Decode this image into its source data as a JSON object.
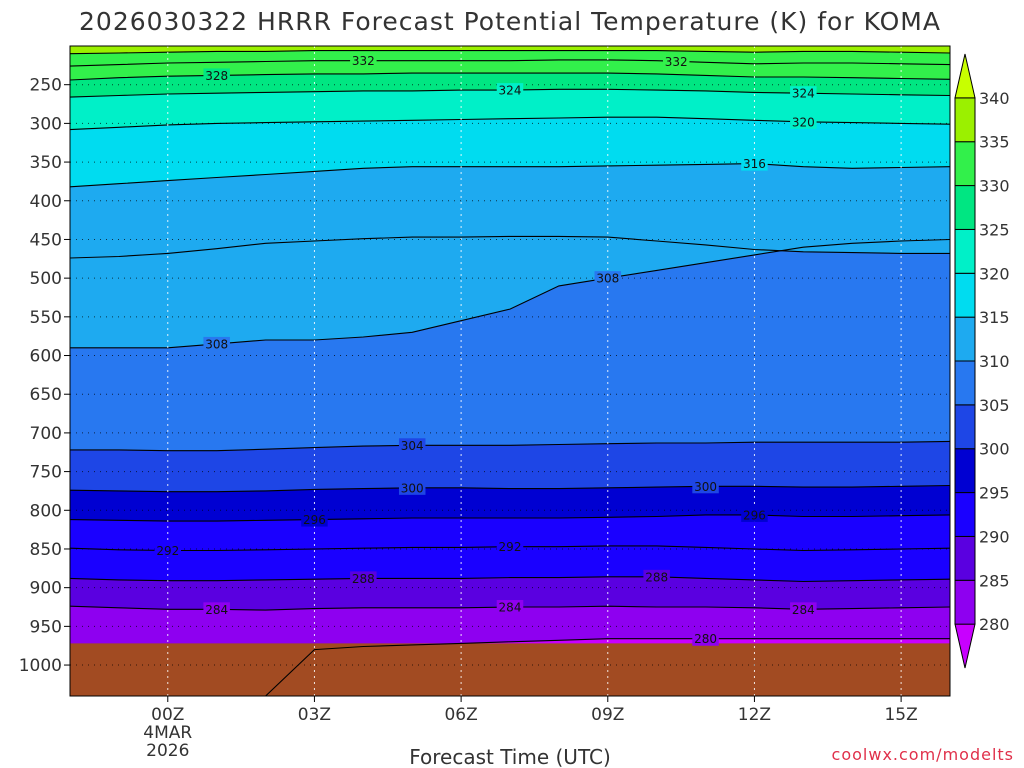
{
  "chart_data": {
    "type": "heatmap",
    "title": "2026030322 HRRR Forecast Potential Temperature (K) for KOMA",
    "xlabel": "Forecast Time (UTC)",
    "ylabel": "",
    "credit": "coolwx.com/modelts",
    "units": "K",
    "x_ticks": [
      {
        "hour": 0,
        "label": "00Z",
        "sub1": "4MAR",
        "sub2": "2026"
      },
      {
        "hour": 3,
        "label": "03Z",
        "sub1": "",
        "sub2": ""
      },
      {
        "hour": 6,
        "label": "06Z",
        "sub1": "",
        "sub2": ""
      },
      {
        "hour": 9,
        "label": "09Z",
        "sub1": "",
        "sub2": ""
      },
      {
        "hour": 12,
        "label": "12Z",
        "sub1": "",
        "sub2": ""
      },
      {
        "hour": 15,
        "label": "15Z",
        "sub1": "",
        "sub2": ""
      }
    ],
    "x_range_hours": [
      -2,
      16
    ],
    "y_pressure_levels": [
      250,
      300,
      350,
      400,
      450,
      500,
      550,
      600,
      650,
      700,
      750,
      800,
      850,
      900,
      950,
      1000
    ],
    "y_axis_labels": [
      "250",
      "300",
      "350",
      "400",
      "450",
      "500",
      "550",
      "600",
      "650",
      "700",
      "750",
      "800",
      "850",
      "900",
      "950",
      "1000"
    ],
    "y_range_hpa": [
      1040,
      200
    ],
    "ground_top_hpa": 972,
    "ground_color": "#a24b22",
    "colorbar": {
      "labels": [
        "280",
        "285",
        "290",
        "295",
        "300",
        "305",
        "310",
        "315",
        "320",
        "325",
        "330",
        "335",
        "340"
      ],
      "min": 275,
      "max": 345,
      "step": 5,
      "colors": [
        "#c800ff",
        "#8e00f0",
        "#5a00e0",
        "#1a00ff",
        "#0000d2",
        "#1e46e6",
        "#2878f0",
        "#1eaaf0",
        "#00dcf0",
        "#00f0c8",
        "#00e682",
        "#32f04b",
        "#9bf000",
        "#c8ff00"
      ]
    },
    "times_hours": [
      -2,
      -1,
      0,
      1,
      2,
      3,
      4,
      5,
      6,
      7,
      8,
      9,
      10,
      11,
      12,
      13,
      14,
      15,
      16
    ],
    "isentropes": [
      {
        "theta": 280,
        "p": [
          1040,
          1040,
          1040,
          1040,
          1040,
          980,
          976,
          974,
          972,
          970,
          968,
          966,
          966,
          966,
          966,
          966,
          966,
          966,
          966
        ]
      },
      {
        "theta": 284,
        "p": [
          924,
          926,
          928,
          928,
          929,
          927,
          926,
          926,
          926,
          925,
          925,
          924,
          925,
          925,
          926,
          928,
          927,
          926,
          925
        ]
      },
      {
        "theta": 288,
        "p": [
          888,
          890,
          891,
          891,
          890,
          889,
          888,
          888,
          888,
          887,
          887,
          886,
          886,
          888,
          890,
          892,
          891,
          890,
          889
        ]
      },
      {
        "theta": 292,
        "p": [
          849,
          851,
          852,
          852,
          851,
          850,
          849,
          848,
          848,
          847,
          847,
          846,
          846,
          848,
          850,
          852,
          851,
          850,
          849
        ]
      },
      {
        "theta": 296,
        "p": [
          812,
          813,
          814,
          814,
          813,
          812,
          811,
          810,
          810,
          810,
          810,
          809,
          808,
          806,
          806,
          808,
          808,
          807,
          806
        ]
      },
      {
        "theta": 300,
        "p": [
          774,
          775,
          776,
          776,
          775,
          773,
          772,
          771,
          771,
          772,
          772,
          771,
          770,
          769,
          769,
          770,
          770,
          769,
          768
        ]
      },
      {
        "theta": 304,
        "p": [
          722,
          722,
          723,
          723,
          721,
          719,
          717,
          716,
          716,
          716,
          715,
          714,
          713,
          713,
          712,
          712,
          712,
          712,
          711
        ]
      },
      {
        "theta": 308,
        "p": [
          590,
          590,
          590,
          585,
          580,
          580,
          576,
          570,
          555,
          540,
          510,
          500,
          490,
          480,
          470,
          460,
          455,
          452,
          450
        ]
      },
      {
        "theta": 312,
        "p": [
          474,
          472,
          468,
          462,
          455,
          452,
          449,
          447,
          447,
          446,
          446,
          447,
          452,
          457,
          463,
          466,
          467,
          468,
          468
        ]
      },
      {
        "theta": 316,
        "p": [
          382,
          378,
          374,
          370,
          366,
          362,
          358,
          356,
          356,
          356,
          356,
          355,
          354,
          353,
          352,
          356,
          358,
          357,
          356
        ]
      },
      {
        "theta": 320,
        "p": [
          308,
          305,
          302,
          300,
          299,
          298,
          297,
          296,
          295,
          294,
          293,
          292,
          292,
          294,
          296,
          298,
          299,
          300,
          301
        ]
      },
      {
        "theta": 324,
        "p": [
          266,
          264,
          262,
          261,
          260,
          259,
          258,
          258,
          257,
          257,
          256,
          256,
          257,
          258,
          260,
          261,
          262,
          263,
          264
        ]
      },
      {
        "theta": 328,
        "p": [
          244,
          241,
          239,
          238,
          237,
          236,
          236,
          235,
          235,
          235,
          235,
          235,
          236,
          238,
          240,
          240,
          241,
          242,
          243
        ]
      },
      {
        "theta": 332,
        "p": [
          226,
          224,
          222,
          221,
          220,
          219,
          219,
          219,
          219,
          219,
          218,
          218,
          219,
          221,
          223,
          222,
          222,
          223,
          224
        ]
      },
      {
        "theta": 336,
        "p": [
          210,
          209,
          208,
          207,
          207,
          206,
          206,
          206,
          206,
          206,
          206,
          206,
          206,
          207,
          208,
          207,
          207,
          208,
          209
        ]
      }
    ],
    "contour_labels": [
      {
        "text": "332",
        "hour": 4.0,
        "theta": 332
      },
      {
        "text": "332",
        "hour": 10.4,
        "theta": 332
      },
      {
        "text": "328",
        "hour": 1.0,
        "theta": 328
      },
      {
        "text": "324",
        "hour": 7.0,
        "theta": 324
      },
      {
        "text": "324",
        "hour": 13.0,
        "theta": 324
      },
      {
        "text": "320",
        "hour": 13.0,
        "theta": 320
      },
      {
        "text": "316",
        "hour": 12.0,
        "theta": 316
      },
      {
        "text": "308",
        "hour": 9.0,
        "theta": 308
      },
      {
        "text": "308",
        "hour": 1.0,
        "theta": 308
      },
      {
        "text": "304",
        "hour": 5.0,
        "theta": 304
      },
      {
        "text": "300",
        "hour": 5.0,
        "theta": 300
      },
      {
        "text": "300",
        "hour": 11.0,
        "theta": 300
      },
      {
        "text": "296",
        "hour": 3.0,
        "theta": 296
      },
      {
        "text": "296",
        "hour": 12.0,
        "theta": 296
      },
      {
        "text": "292",
        "hour": 0.0,
        "theta": 292
      },
      {
        "text": "292",
        "hour": 7.0,
        "theta": 292
      },
      {
        "text": "288",
        "hour": 4.0,
        "theta": 288
      },
      {
        "text": "288",
        "hour": 10.0,
        "theta": 288
      },
      {
        "text": "284",
        "hour": 1.0,
        "theta": 284
      },
      {
        "text": "284",
        "hour": 7.0,
        "theta": 284
      },
      {
        "text": "284",
        "hour": 13.0,
        "theta": 284
      },
      {
        "text": "280",
        "hour": 11.0,
        "theta": 280
      }
    ]
  }
}
